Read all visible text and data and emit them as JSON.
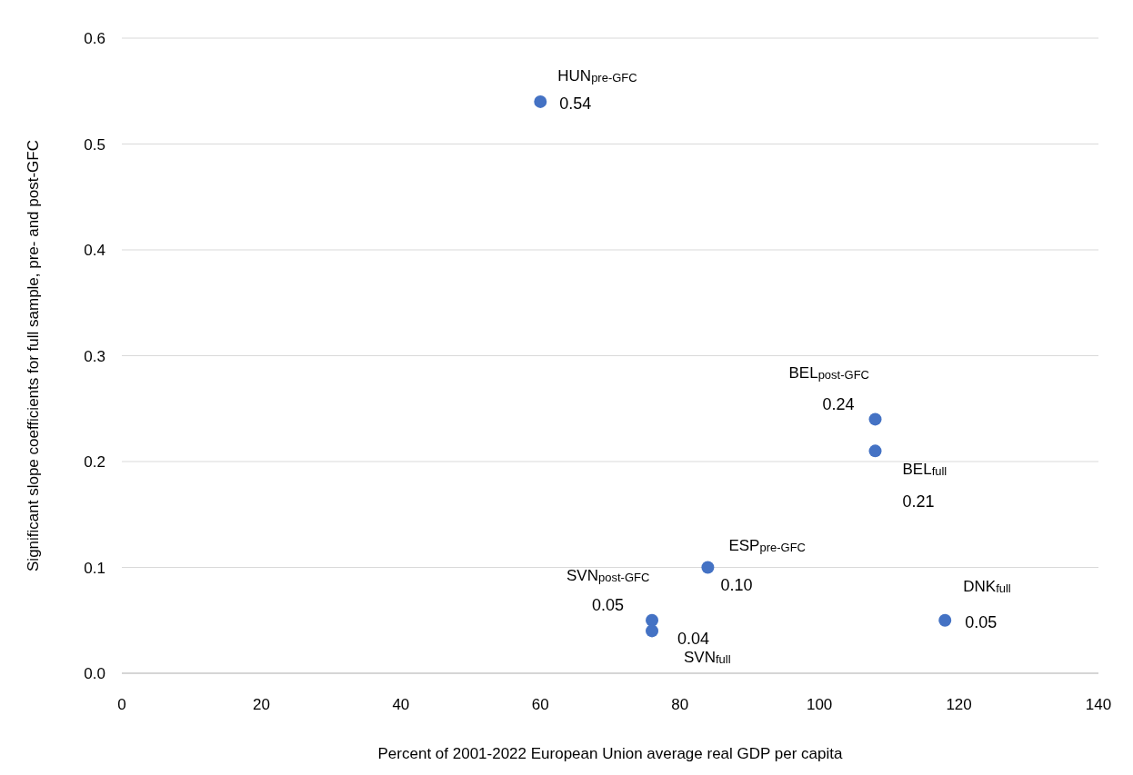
{
  "chart_data": {
    "type": "scatter",
    "xlabel": "Percent of 2001-2022 European Union average real GDP per capita",
    "ylabel": "Significant slope coefficients for full sample, pre- and post-GFC",
    "x": [
      60,
      108,
      108,
      84,
      76,
      76,
      118
    ],
    "series": [
      {
        "color": "#4472c4",
        "values": [
          0.54,
          0.24,
          0.21,
          0.1,
          0.05,
          0.04,
          0.05
        ],
        "value_labels": [
          "0.54",
          "0.24",
          "0.21",
          "0.10",
          "0.05",
          "0.04",
          "0.05"
        ]
      }
    ],
    "annotations": [
      {
        "text": "HUN$_{pre-GFC}$",
        "x": 60,
        "y": 0.54
      },
      {
        "text": "BEL$_{post-GFC}$",
        "x": 108,
        "y": 0.24
      },
      {
        "text": "BEL$_{full}$",
        "x": 108,
        "y": 0.21
      },
      {
        "text": "ESP$_{pre-GFC}$",
        "x": 84,
        "y": 0.1
      },
      {
        "text": "SVN$_{post-GFC}$",
        "x": 76,
        "y": 0.05
      },
      {
        "text": "SVN$_{full}$",
        "x": 76,
        "y": 0.04
      },
      {
        "text": "DNK$_{full}$",
        "x": 118,
        "y": 0.05
      }
    ],
    "xlim": [
      0,
      140
    ],
    "xticks": [
      0,
      20,
      40,
      60,
      80,
      100,
      120,
      140
    ],
    "ylim": [
      0,
      0.6
    ],
    "yticks": [
      {
        "value": 0,
        "label": "0.0"
      },
      {
        "value": 0.1,
        "label": "0.1"
      },
      {
        "value": 0.2,
        "label": "0.2"
      },
      {
        "value": 0.3,
        "label": "0.3"
      },
      {
        "value": 0.4,
        "label": "0.4"
      },
      {
        "value": 0.5,
        "label": "0.5"
      },
      {
        "value": 0.6,
        "label": "0.6"
      }
    ],
    "grid": "y",
    "marker": "circle"
  }
}
